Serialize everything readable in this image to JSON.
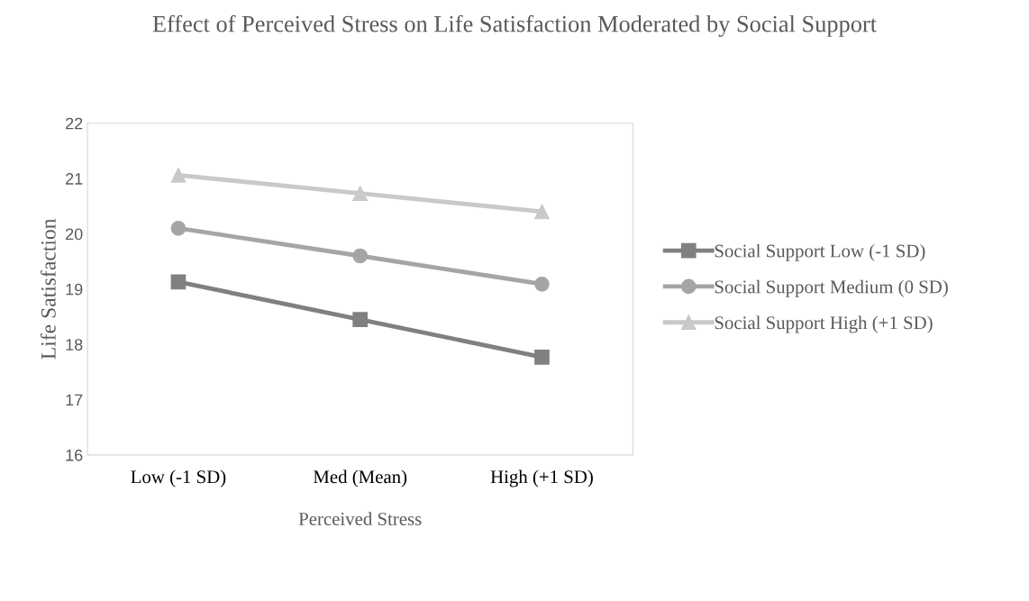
{
  "chart_data": {
    "type": "line",
    "title": "Effect of Perceived Stress on Life Satisfaction Moderated by Social Support",
    "xlabel": "Perceived Stress",
    "ylabel": "Life Satisfaction",
    "categories": [
      "Low (-1 SD)",
      "Med (Mean)",
      "High (+1 SD)"
    ],
    "series": [
      {
        "name": "Social Support Low (-1 SD)",
        "color": "#808080",
        "values": [
          19.13,
          18.45,
          17.77
        ],
        "marker": "square"
      },
      {
        "name": "Social Support Medium (0 SD)",
        "color": "#a5a5a5",
        "values": [
          20.1,
          19.6,
          19.09
        ],
        "marker": "circle"
      },
      {
        "name": "Social Support High (+1 SD)",
        "color": "#c9c9c9",
        "values": [
          21.06,
          20.73,
          20.4
        ],
        "marker": "triangle"
      }
    ],
    "ylim": [
      16,
      22
    ],
    "yticks": [
      16,
      17,
      18,
      19,
      20,
      21,
      22
    ],
    "grid": false,
    "legend": "right",
    "line_style": "solid"
  }
}
